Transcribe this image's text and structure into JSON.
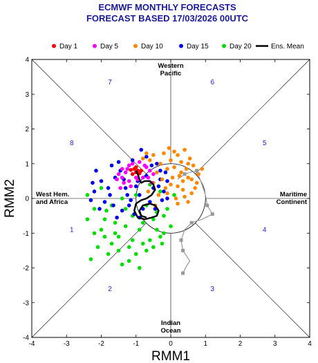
{
  "chart_data": {
    "type": "scatter",
    "title": "ECMWF MONTHLY FORECASTS",
    "subtitle": "FORECAST  BASED 17/03/2026 00UTC",
    "xlabel": "RMM1",
    "ylabel": "RMM2",
    "xlim": [
      -4,
      4
    ],
    "ylim": [
      -4,
      4
    ],
    "xticks": [
      "-4",
      "-3",
      "-2",
      "-1",
      "0",
      "1",
      "2",
      "3",
      "4"
    ],
    "yticks": [
      "-4",
      "-3",
      "-2",
      "-1",
      "0",
      "1",
      "2",
      "3",
      "4"
    ],
    "grid": false,
    "legend_position": "top",
    "regions": [
      {
        "id": "western-pacific",
        "lines": [
          "Western",
          "Pacific"
        ],
        "x": 0,
        "y": 3.7
      },
      {
        "id": "maritime-continent",
        "lines": [
          "Maritime",
          "Continent"
        ],
        "x": 3.6,
        "y": 0
      },
      {
        "id": "indian-ocean",
        "lines": [
          "Indian",
          "Ocean"
        ],
        "x": 0,
        "y": -3.7
      },
      {
        "id": "west-hem-africa",
        "lines": [
          "West Hem.",
          "and Africa"
        ],
        "x": -3.6,
        "y": 0
      }
    ],
    "phases": [
      {
        "label": "7",
        "x": -1.75,
        "y": 3.35
      },
      {
        "label": "6",
        "x": 1.2,
        "y": 3.35
      },
      {
        "label": "8",
        "x": -2.85,
        "y": 1.6
      },
      {
        "label": "5",
        "x": 2.7,
        "y": 1.6
      },
      {
        "label": "1",
        "x": -2.85,
        "y": -0.9
      },
      {
        "label": "4",
        "x": 2.7,
        "y": -0.9
      },
      {
        "label": "2",
        "x": -1.75,
        "y": -2.6
      },
      {
        "label": "3",
        "x": 1.2,
        "y": -2.6
      }
    ],
    "amplitude_circle_radius": 1,
    "series": [
      {
        "name": "Day 1",
        "color": "#ff0000",
        "points": [
          [
            -1.05,
            0.85
          ],
          [
            -1.0,
            0.75
          ],
          [
            -0.95,
            0.8
          ],
          [
            -1.1,
            0.7
          ],
          [
            -0.9,
            0.72
          ],
          [
            -1.0,
            0.9
          ],
          [
            -0.85,
            0.8
          ],
          [
            -1.15,
            0.82
          ]
        ]
      },
      {
        "name": "Day 5",
        "color": "#ff00ff",
        "points": [
          [
            -1.3,
            0.75
          ],
          [
            -1.4,
            0.6
          ],
          [
            -1.2,
            0.95
          ],
          [
            -1.45,
            0.3
          ],
          [
            -1.35,
            0.45
          ],
          [
            -0.7,
            0.9
          ],
          [
            -0.6,
            0.8
          ],
          [
            -1.1,
            1.0
          ],
          [
            -1.5,
            0.7
          ],
          [
            -0.8,
            0.6
          ],
          [
            -1.2,
            0.5
          ],
          [
            -0.9,
            1.05
          ],
          [
            -0.5,
            0.7
          ],
          [
            -1.0,
            0.6
          ],
          [
            -1.25,
            0.85
          ],
          [
            -0.75,
            0.95
          ],
          [
            -1.55,
            0.55
          ],
          [
            -0.65,
            0.6
          ],
          [
            -1.15,
            0.35
          ],
          [
            -0.95,
            0.55
          ],
          [
            -0.55,
            0.45
          ],
          [
            -1.4,
            0.85
          ]
        ]
      },
      {
        "name": "Day 10",
        "color": "#ff8800",
        "points": [
          [
            -0.2,
            1.3
          ],
          [
            0.0,
            1.1
          ],
          [
            0.2,
            1.25
          ],
          [
            0.4,
            1.4
          ],
          [
            -0.3,
            1.0
          ],
          [
            0.1,
            0.9
          ],
          [
            0.5,
            1.0
          ],
          [
            -0.5,
            1.25
          ],
          [
            0.3,
            0.75
          ],
          [
            0.6,
            0.55
          ],
          [
            0.7,
            0.3
          ],
          [
            0.35,
            0.5
          ],
          [
            0.5,
            -0.1
          ],
          [
            0.05,
            0.6
          ],
          [
            -0.1,
            0.85
          ],
          [
            0.2,
            0.35
          ],
          [
            0.45,
            0.85
          ],
          [
            -0.6,
            1.1
          ],
          [
            -0.05,
            1.45
          ],
          [
            0.3,
            1.05
          ],
          [
            0.8,
            0.7
          ],
          [
            0.6,
            0.15
          ],
          [
            -0.4,
            0.75
          ],
          [
            0.15,
            0.0
          ],
          [
            -0.25,
            0.55
          ],
          [
            0.35,
            0.25
          ],
          [
            -0.7,
            1.3
          ],
          [
            0.55,
            1.15
          ],
          [
            0.0,
            0.4
          ],
          [
            -0.15,
            0.3
          ],
          [
            0.25,
            0.65
          ],
          [
            0.65,
            0.95
          ],
          [
            -0.35,
            0.1
          ],
          [
            -0.5,
            0.45
          ],
          [
            0.1,
            1.35
          ],
          [
            0.4,
            0.05
          ],
          [
            -0.8,
            1.15
          ],
          [
            0.75,
            0.45
          ],
          [
            -0.1,
            0.15
          ],
          [
            0.9,
            0.85
          ],
          [
            0.2,
            -0.15
          ],
          [
            -0.45,
            -0.2
          ],
          [
            0.5,
            0.6
          ],
          [
            -0.65,
            0.2
          ]
        ]
      },
      {
        "name": "Day 15",
        "color": "#0000ee",
        "points": [
          [
            -1.6,
            0.6
          ],
          [
            -1.8,
            0.3
          ],
          [
            -2.0,
            0.5
          ],
          [
            -1.7,
            0.95
          ],
          [
            -1.5,
            1.05
          ],
          [
            -1.3,
            0.3
          ],
          [
            -1.9,
            -0.1
          ],
          [
            -2.2,
            0.2
          ],
          [
            -1.2,
            -0.2
          ],
          [
            -0.9,
            0.1
          ],
          [
            -0.5,
            0.3
          ],
          [
            -0.3,
            0.8
          ],
          [
            -0.1,
            0.5
          ],
          [
            -0.7,
            1.2
          ],
          [
            -0.85,
            1.4
          ],
          [
            -1.1,
            1.1
          ],
          [
            -0.2,
            0.2
          ],
          [
            -0.6,
            -0.1
          ],
          [
            -1.4,
            -0.35
          ],
          [
            -2.3,
            -0.05
          ],
          [
            -2.15,
            0.8
          ],
          [
            -0.4,
            1.0
          ],
          [
            -1.0,
            0.35
          ],
          [
            -1.25,
            0.1
          ],
          [
            -0.8,
            -0.3
          ],
          [
            -1.55,
            -0.55
          ],
          [
            -0.45,
            -0.3
          ],
          [
            -0.1,
            0.0
          ],
          [
            -1.75,
            0.1
          ],
          [
            -0.95,
            0.5
          ],
          [
            -0.3,
            0.55
          ],
          [
            -1.05,
            -0.45
          ],
          [
            -1.45,
            0.8
          ],
          [
            -2.05,
            -0.3
          ],
          [
            -0.7,
            0.65
          ],
          [
            -0.55,
            0.95
          ],
          [
            -0.15,
            0.75
          ],
          [
            -1.35,
            0.55
          ],
          [
            -0.25,
            -0.05
          ],
          [
            -1.65,
            -0.2
          ],
          [
            -2.25,
            0.45
          ],
          [
            -0.9,
            -0.55
          ],
          [
            -0.35,
            0.35
          ],
          [
            -1.15,
            -0.05
          ]
        ]
      },
      {
        "name": "Day 20",
        "color": "#00dd00",
        "points": [
          [
            -2.3,
            -1.75
          ],
          [
            -2.4,
            -0.6
          ],
          [
            -2.2,
            -1.0
          ],
          [
            -1.9,
            -1.1
          ],
          [
            -1.7,
            -1.3
          ],
          [
            -1.5,
            -1.5
          ],
          [
            -1.2,
            -1.4
          ],
          [
            -1.0,
            -1.6
          ],
          [
            -0.8,
            -1.3
          ],
          [
            -0.6,
            -1.2
          ],
          [
            -0.3,
            -1.1
          ],
          [
            0.0,
            -0.8
          ],
          [
            -0.2,
            -0.5
          ],
          [
            -0.5,
            -0.6
          ],
          [
            -0.9,
            -0.9
          ],
          [
            -1.3,
            -0.8
          ],
          [
            -1.6,
            -0.7
          ],
          [
            -1.9,
            -0.6
          ],
          [
            -2.2,
            -0.3
          ],
          [
            -2.4,
            0.1
          ],
          [
            -2.1,
            -1.4
          ],
          [
            -1.8,
            -1.6
          ],
          [
            -1.4,
            -1.9
          ],
          [
            -1.1,
            -1.2
          ],
          [
            -0.7,
            -1.5
          ],
          [
            -0.4,
            -0.9
          ],
          [
            -0.1,
            -0.3
          ],
          [
            0.1,
            0.1
          ],
          [
            -0.3,
            0.2
          ],
          [
            -0.6,
            0.4
          ],
          [
            -1.0,
            0.1
          ],
          [
            -1.3,
            -0.3
          ],
          [
            -1.7,
            -0.2
          ],
          [
            -2.0,
            0.3
          ],
          [
            -1.5,
            -1.1
          ],
          [
            -1.2,
            -1.8
          ],
          [
            -0.9,
            -2.0
          ],
          [
            -0.5,
            -1.4
          ],
          [
            -0.2,
            -1.0
          ],
          [
            -0.8,
            -0.7
          ],
          [
            -1.6,
            -1.0
          ],
          [
            -2.0,
            -0.9
          ],
          [
            -1.1,
            -0.5
          ],
          [
            -0.4,
            -0.4
          ],
          [
            -0.7,
            -0.2
          ],
          [
            -1.4,
            0.0
          ],
          [
            -1.85,
            -0.35
          ],
          [
            -0.25,
            -1.3
          ]
        ]
      }
    ],
    "ensemble_mean": {
      "name": "Ens. Mean",
      "color": "#000000",
      "points": [
        [
          -1.0,
          0.8
        ],
        [
          -0.95,
          0.7
        ],
        [
          -0.9,
          0.55
        ],
        [
          -0.85,
          0.45
        ],
        [
          -0.75,
          0.5
        ],
        [
          -0.6,
          0.5
        ],
        [
          -0.5,
          0.4
        ],
        [
          -0.45,
          0.25
        ],
        [
          -0.55,
          0.1
        ],
        [
          -0.7,
          0.0
        ],
        [
          -0.85,
          -0.05
        ],
        [
          -1.0,
          -0.15
        ],
        [
          -1.05,
          -0.35
        ],
        [
          -0.95,
          -0.55
        ],
        [
          -0.75,
          -0.6
        ],
        [
          -0.55,
          -0.55
        ],
        [
          -0.4,
          -0.5
        ],
        [
          -0.35,
          -0.35
        ],
        [
          -0.45,
          -0.2
        ],
        [
          -0.6,
          -0.15
        ],
        [
          -0.8,
          -0.2
        ],
        [
          -0.9,
          -0.35
        ],
        [
          -0.85,
          -0.5
        ],
        [
          -0.7,
          -0.55
        ]
      ]
    },
    "analysis_track": {
      "color": "#999999",
      "points": [
        [
          0.2,
          0.55
        ],
        [
          0.4,
          0.7
        ],
        [
          0.55,
          0.75
        ],
        [
          0.75,
          0.8
        ],
        [
          0.9,
          0.4
        ],
        [
          1.0,
          0.1
        ],
        [
          1.05,
          -0.2
        ],
        [
          1.2,
          -0.45
        ],
        [
          0.9,
          -0.6
        ],
        [
          0.6,
          -0.7
        ],
        [
          0.4,
          -0.9
        ],
        [
          0.3,
          -1.2
        ],
        [
          0.35,
          -1.5
        ],
        [
          0.55,
          -1.8
        ],
        [
          0.45,
          -1.95
        ],
        [
          0.35,
          -2.15
        ]
      ],
      "markers": [
        [
          0.4,
          0.7
        ],
        [
          0.75,
          0.8
        ],
        [
          1.05,
          -0.2
        ],
        [
          1.2,
          -0.45
        ],
        [
          0.6,
          -0.7
        ],
        [
          0.3,
          -1.2
        ],
        [
          0.35,
          -1.5
        ],
        [
          0.35,
          -2.15
        ]
      ]
    }
  }
}
